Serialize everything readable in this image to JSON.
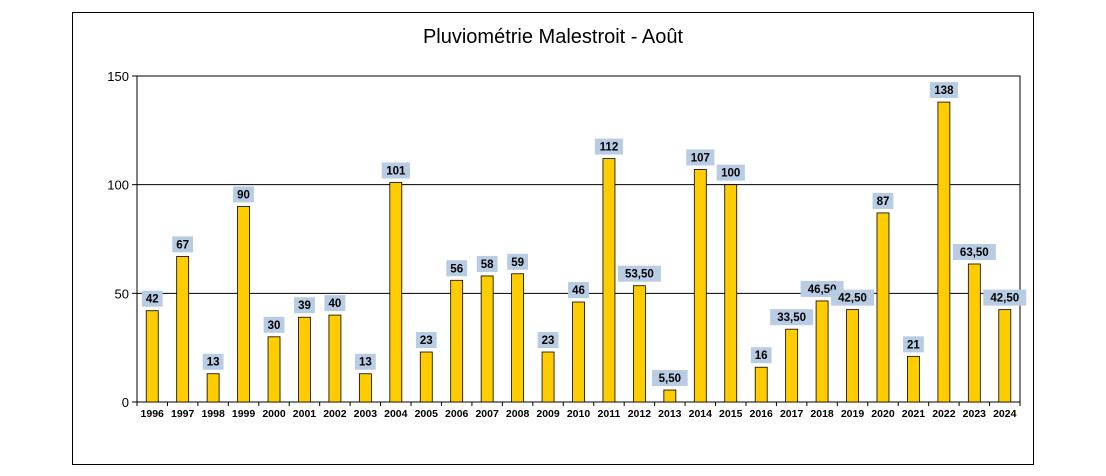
{
  "chart_data": {
    "type": "bar",
    "title": "Pluviométrie Malestroit - Août",
    "xlabel": "",
    "ylabel": "",
    "ylim": [
      0,
      150
    ],
    "yticks": [
      "0",
      "50",
      "100",
      "150"
    ],
    "grid": true,
    "categories": [
      "1996",
      "1997",
      "1998",
      "1999",
      "2000",
      "2001",
      "2002",
      "2003",
      "2004",
      "2005",
      "2006",
      "2007",
      "2008",
      "2009",
      "2010",
      "2011",
      "2012",
      "2013",
      "2014",
      "2015",
      "2016",
      "2017",
      "2018",
      "2019",
      "2020",
      "2021",
      "2022",
      "2023",
      "2024"
    ],
    "values": [
      42,
      67,
      13,
      90,
      30,
      39,
      40,
      13,
      101,
      23,
      56,
      58,
      59,
      23,
      46,
      112,
      53.5,
      5.5,
      107,
      100,
      16,
      33.5,
      46.5,
      42.5,
      87,
      21,
      138,
      63.5,
      42.5
    ],
    "data_labels": [
      "42",
      "67",
      "13",
      "90",
      "30",
      "39",
      "40",
      "13",
      "101",
      "23",
      "56",
      "58",
      "59",
      "23",
      "46",
      "112",
      "53,50",
      "5,50",
      "107",
      "100",
      "16",
      "33,50",
      "46,50",
      "42,50",
      "87",
      "21",
      "138",
      "63,50",
      "42,50"
    ],
    "colors": {
      "bar_fill": "#FFCC00",
      "bar_stroke": "#000000",
      "label_bg": "#B8CCE4",
      "gridline": "#000000"
    }
  }
}
